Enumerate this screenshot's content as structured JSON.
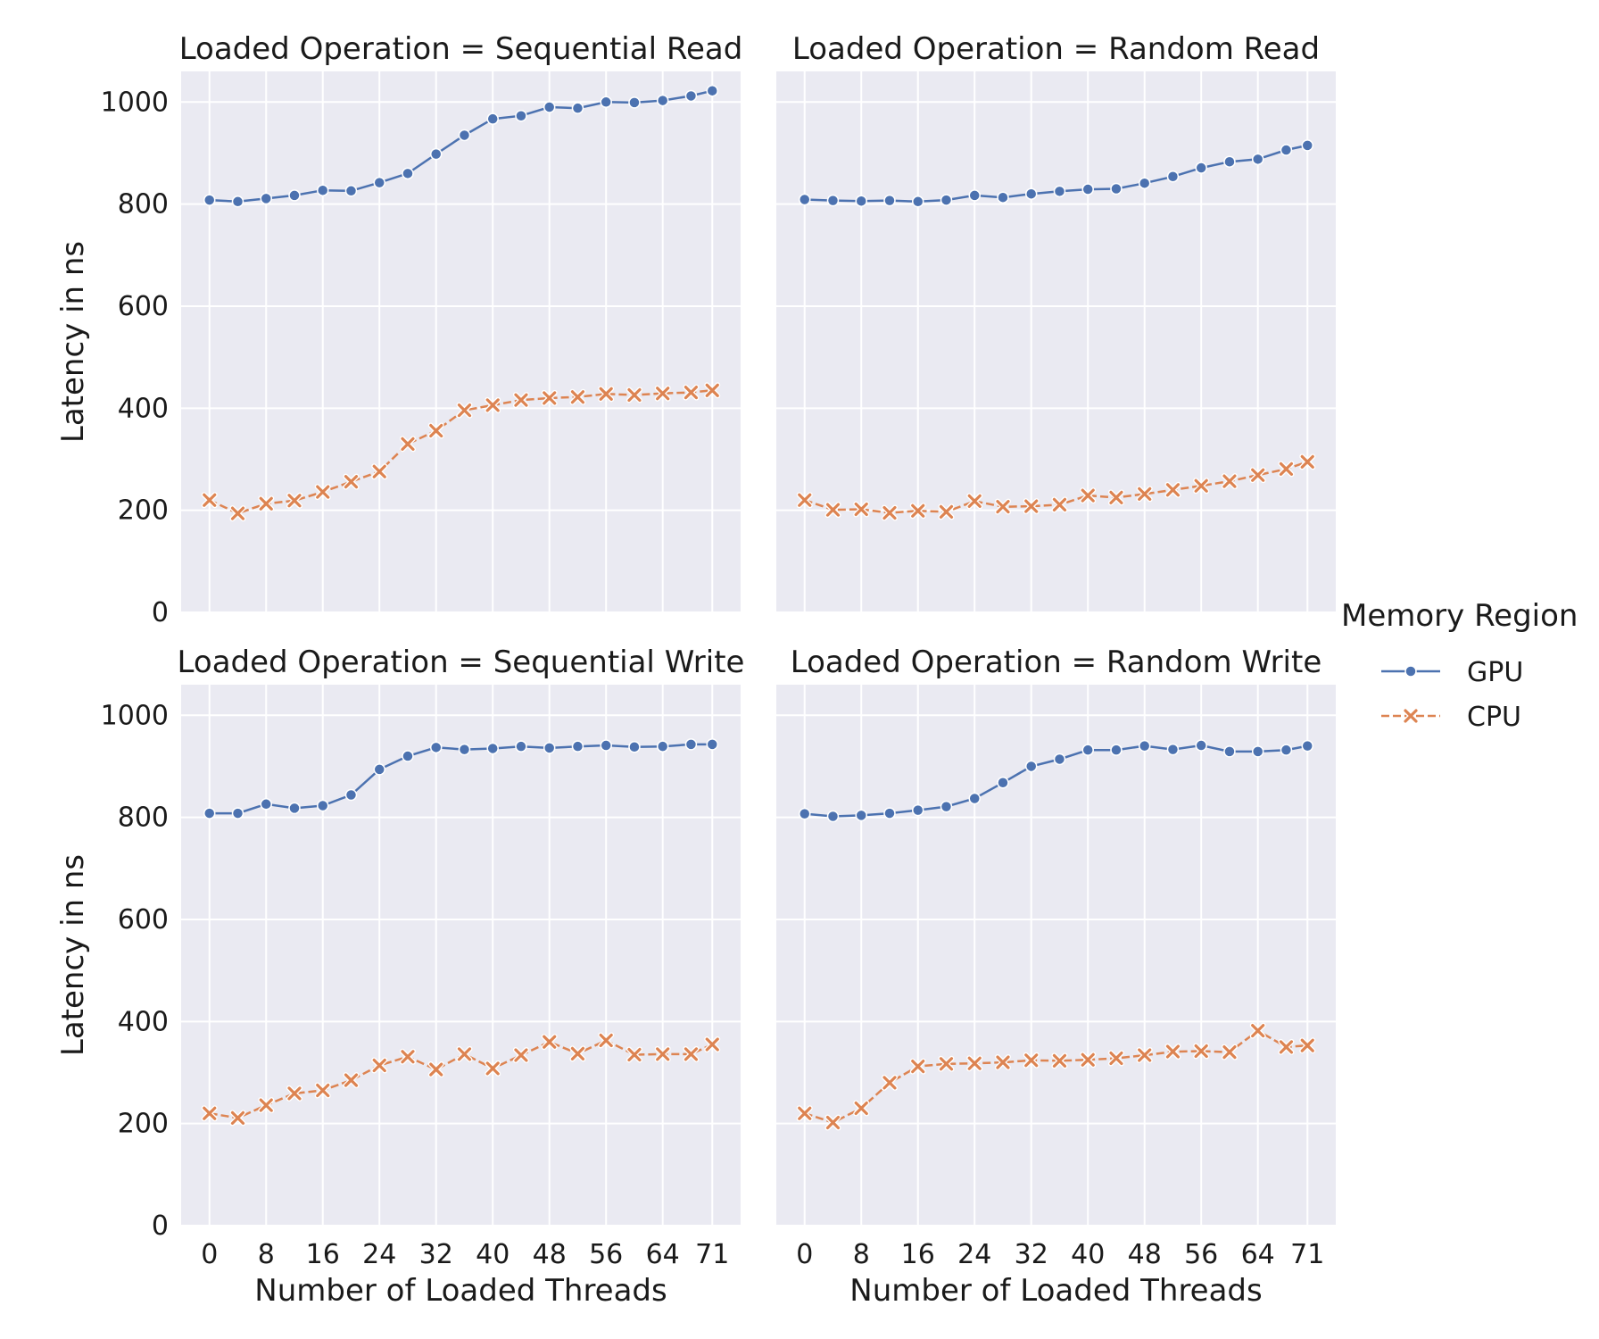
{
  "chart_data": {
    "type": "line",
    "row_label": "Loaded Operation",
    "xlabel": "Number of Loaded Threads",
    "ylabel": "Latency in ns",
    "ylim": [
      0,
      1060
    ],
    "y_ticks": [
      0,
      200,
      400,
      600,
      800,
      1000
    ],
    "x_ticks": [
      0,
      8,
      16,
      24,
      32,
      40,
      48,
      56,
      64,
      71
    ],
    "xlim": [
      -4,
      75
    ],
    "grid": true,
    "legend": {
      "title": "Memory Region",
      "placement": "right",
      "entries": [
        {
          "name": "GPU",
          "color": "#4c72b0",
          "marker": "circle",
          "dash": "solid"
        },
        {
          "name": "CPU",
          "color": "#dd8452",
          "marker": "x",
          "dash": "dashed"
        }
      ]
    },
    "x": [
      0,
      4,
      8,
      12,
      16,
      20,
      24,
      28,
      32,
      36,
      40,
      44,
      48,
      52,
      56,
      60,
      64,
      68,
      71
    ],
    "facets": [
      {
        "title": "Loaded Operation = Sequential Read",
        "series": [
          {
            "name": "GPU",
            "values": [
              808,
              805,
              811,
              817,
              827,
              826,
              842,
              860,
              898,
              935,
              967,
              973,
              990,
              988,
              1000,
              999,
              1003,
              1012,
              1022
            ]
          },
          {
            "name": "CPU",
            "values": [
              220,
              194,
              213,
              219,
              236,
              256,
              276,
              330,
              356,
              396,
              406,
              416,
              420,
              422,
              428,
              426,
              429,
              431,
              435
            ]
          }
        ]
      },
      {
        "title": "Loaded Operation = Random Read",
        "series": [
          {
            "name": "GPU",
            "values": [
              809,
              807,
              806,
              807,
              805,
              808,
              817,
              813,
              820,
              825,
              829,
              830,
              841,
              854,
              871,
              883,
              888,
              906,
              915
            ]
          },
          {
            "name": "CPU",
            "values": [
              220,
              201,
              202,
              195,
              199,
              197,
              218,
              207,
              208,
              211,
              229,
              225,
              232,
              240,
              248,
              257,
              269,
              281,
              295
            ]
          }
        ]
      },
      {
        "title": "Loaded Operation = Sequential Write",
        "series": [
          {
            "name": "GPU",
            "values": [
              808,
              808,
              826,
              818,
              823,
              844,
              894,
              920,
              937,
              933,
              935,
              939,
              936,
              939,
              941,
              938,
              939,
              943,
              943
            ]
          },
          {
            "name": "CPU",
            "values": [
              220,
              211,
              236,
              259,
              265,
              285,
              314,
              331,
              306,
              336,
              308,
              334,
              360,
              337,
              363,
              335,
              336,
              336,
              355
            ]
          }
        ]
      },
      {
        "title": "Loaded Operation = Random Write",
        "series": [
          {
            "name": "GPU",
            "values": [
              807,
              802,
              804,
              808,
              814,
              821,
              837,
              868,
              900,
              914,
              932,
              932,
              940,
              933,
              941,
              929,
              929,
              932,
              940
            ]
          },
          {
            "name": "CPU",
            "values": [
              220,
              202,
              230,
              280,
              312,
              317,
              318,
              320,
              324,
              323,
              325,
              328,
              334,
              341,
              342,
              340,
              382,
              350,
              353
            ]
          }
        ]
      }
    ]
  }
}
